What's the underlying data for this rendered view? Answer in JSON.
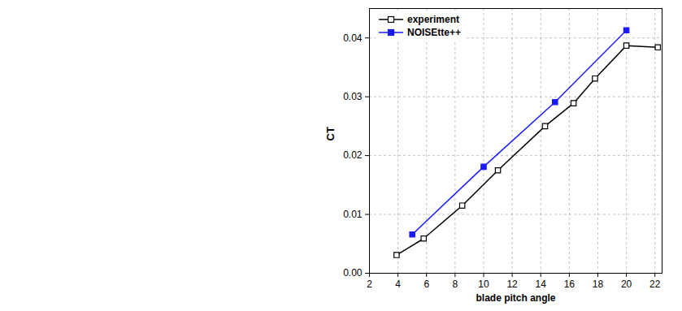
{
  "chart_data": {
    "type": "line",
    "x_label": "blade pitch angle",
    "y_label": "CT",
    "xlim": [
      2,
      22.5
    ],
    "xticks": [
      2,
      4,
      6,
      8,
      10,
      12,
      14,
      16,
      18,
      20,
      22
    ],
    "ylim": [
      0,
      0.045
    ],
    "yticks": [
      {
        "value": 0,
        "label": "0.00"
      },
      0.01,
      0.02,
      0.03,
      0.04
    ],
    "grid": true,
    "legend": "top-left",
    "series": [
      {
        "name": "experiment",
        "color": "#000000",
        "marker": "square-open",
        "line_style": "solid",
        "x": [
          3.9,
          5.8,
          8.5,
          11,
          14.3,
          16.3,
          17.8,
          20,
          22.2
        ],
        "values": [
          0.0031,
          0.0059,
          0.0115,
          0.0175,
          0.025,
          0.0289,
          0.0331,
          0.0387,
          0.0384
        ]
      },
      {
        "name": "NOISEtte++",
        "color": "#1a1aff",
        "marker": "square",
        "line_style": "solid",
        "x": [
          5,
          10,
          15,
          20
        ],
        "values": [
          0.0066,
          0.0181,
          0.0291,
          0.0413
        ]
      }
    ]
  }
}
